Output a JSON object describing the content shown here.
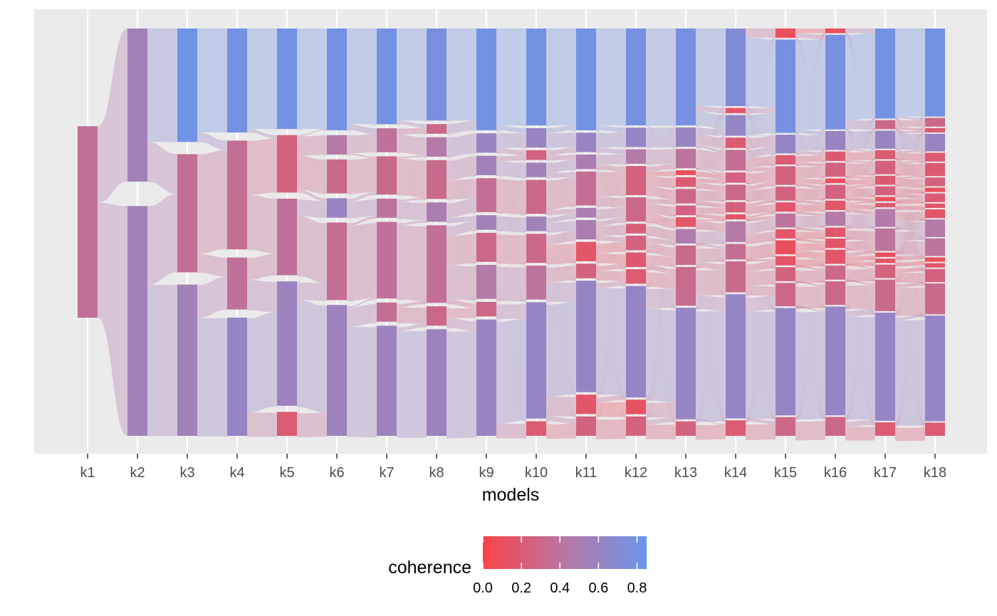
{
  "chart_data": {
    "type": "sankey",
    "xlabel": "models",
    "categories": [
      "k1",
      "k2",
      "k3",
      "k4",
      "k5",
      "k6",
      "k7",
      "k8",
      "k9",
      "k10",
      "k11",
      "k12",
      "k13",
      "k14",
      "k15",
      "k16",
      "k17",
      "k18"
    ],
    "legend": {
      "title": "coherence",
      "position": "bottom",
      "range": [
        0,
        0.85
      ],
      "ticks": [
        0.0,
        0.2,
        0.4,
        0.6,
        0.8
      ],
      "tick_labels": [
        "0.0",
        "0.2",
        "0.4",
        "0.6",
        "0.8"
      ],
      "color_low": "#fa4349",
      "color_mid": "#b47aa8",
      "color_high": "#6a95ec"
    },
    "panel_background": "#ebebeb",
    "grid": true,
    "nodes": [
      [
        [
          1.0,
          0.37
        ]
      ],
      [
        [
          0.4,
          0.55
        ],
        [
          0.6,
          0.55
        ]
      ],
      [
        [
          0.24,
          0.82
        ],
        [
          0.25,
          0.36
        ],
        [
          0.32,
          0.55
        ]
      ],
      [
        [
          0.22,
          0.8
        ],
        [
          0.23,
          0.35
        ],
        [
          0.11,
          0.38
        ],
        [
          0.25,
          0.62
        ]
      ],
      [
        [
          0.21,
          0.8
        ],
        [
          0.12,
          0.25
        ],
        [
          0.16,
          0.38
        ],
        [
          0.26,
          0.58
        ],
        [
          0.05,
          0.2
        ]
      ],
      [
        [
          0.21,
          0.8
        ],
        [
          0.04,
          0.45
        ],
        [
          0.07,
          0.32
        ],
        [
          0.04,
          0.6
        ],
        [
          0.16,
          0.35
        ],
        [
          0.27,
          0.58
        ]
      ],
      [
        [
          0.2,
          0.8
        ],
        [
          0.05,
          0.38
        ],
        [
          0.08,
          0.32
        ],
        [
          0.04,
          0.4
        ],
        [
          0.16,
          0.38
        ],
        [
          0.04,
          0.35
        ],
        [
          0.23,
          0.58
        ]
      ],
      [
        [
          0.19,
          0.78
        ],
        [
          0.02,
          0.3
        ],
        [
          0.04,
          0.45
        ],
        [
          0.08,
          0.32
        ],
        [
          0.04,
          0.5
        ],
        [
          0.16,
          0.36
        ],
        [
          0.04,
          0.3
        ],
        [
          0.22,
          0.58
        ]
      ],
      [
        [
          0.21,
          0.8
        ],
        [
          0.04,
          0.6
        ],
        [
          0.04,
          0.55
        ],
        [
          0.07,
          0.35
        ],
        [
          0.03,
          0.55
        ],
        [
          0.06,
          0.3
        ],
        [
          0.07,
          0.45
        ],
        [
          0.03,
          0.3
        ],
        [
          0.24,
          0.6
        ]
      ],
      [
        [
          0.2,
          0.8
        ],
        [
          0.04,
          0.6
        ],
        [
          0.02,
          0.25
        ],
        [
          0.03,
          0.55
        ],
        [
          0.07,
          0.3
        ],
        [
          0.03,
          0.55
        ],
        [
          0.06,
          0.3
        ],
        [
          0.07,
          0.4
        ],
        [
          0.24,
          0.62
        ],
        [
          0.03,
          0.2
        ]
      ],
      [
        [
          0.21,
          0.8
        ],
        [
          0.04,
          0.6
        ],
        [
          0.03,
          0.5
        ],
        [
          0.07,
          0.35
        ],
        [
          0.02,
          0.5
        ],
        [
          0.04,
          0.5
        ],
        [
          0.04,
          0.15
        ],
        [
          0.03,
          0.25
        ],
        [
          0.23,
          0.62
        ],
        [
          0.04,
          0.15
        ],
        [
          0.04,
          0.25
        ]
      ],
      [
        [
          0.2,
          0.78
        ],
        [
          0.04,
          0.62
        ],
        [
          0.03,
          0.45
        ],
        [
          0.06,
          0.25
        ],
        [
          0.05,
          0.3
        ],
        [
          0.02,
          0.22
        ],
        [
          0.03,
          0.25
        ],
        [
          0.03,
          0.18
        ],
        [
          0.03,
          0.2
        ],
        [
          0.23,
          0.62
        ],
        [
          0.03,
          0.12
        ],
        [
          0.04,
          0.25
        ]
      ],
      [
        [
          0.2,
          0.78
        ],
        [
          0.04,
          0.6
        ],
        [
          0.04,
          0.4
        ],
        [
          0.01,
          0.1
        ],
        [
          0.02,
          0.2
        ],
        [
          0.03,
          0.3
        ],
        [
          0.02,
          0.25
        ],
        [
          0.02,
          0.15
        ],
        [
          0.03,
          0.48
        ],
        [
          0.04,
          0.32
        ],
        [
          0.08,
          0.33
        ],
        [
          0.23,
          0.62
        ],
        [
          0.03,
          0.25
        ]
      ],
      [
        [
          0.15,
          0.72
        ],
        [
          0.01,
          0.15
        ],
        [
          0.04,
          0.62
        ],
        [
          0.02,
          0.2
        ],
        [
          0.04,
          0.35
        ],
        [
          0.02,
          0.25
        ],
        [
          0.03,
          0.3
        ],
        [
          0.02,
          0.25
        ],
        [
          0.01,
          0.15
        ],
        [
          0.04,
          0.45
        ],
        [
          0.03,
          0.35
        ],
        [
          0.06,
          0.32
        ],
        [
          0.24,
          0.62
        ],
        [
          0.03,
          0.2
        ]
      ],
      [
        [
          0.02,
          0.1
        ],
        [
          0.2,
          0.78
        ],
        [
          0.04,
          0.62
        ],
        [
          0.02,
          0.2
        ],
        [
          0.04,
          0.25
        ],
        [
          0.03,
          0.25
        ],
        [
          0.02,
          0.15
        ],
        [
          0.03,
          0.4
        ],
        [
          0.02,
          0.15
        ],
        [
          0.03,
          0.1
        ],
        [
          0.02,
          0.15
        ],
        [
          0.03,
          0.25
        ],
        [
          0.05,
          0.3
        ],
        [
          0.23,
          0.62
        ],
        [
          0.04,
          0.3
        ]
      ],
      [
        [
          0.01,
          0.1
        ],
        [
          0.2,
          0.78
        ],
        [
          0.04,
          0.6
        ],
        [
          0.02,
          0.2
        ],
        [
          0.03,
          0.25
        ],
        [
          0.01,
          0.1
        ],
        [
          0.03,
          0.25
        ],
        [
          0.02,
          0.15
        ],
        [
          0.03,
          0.45
        ],
        [
          0.02,
          0.15
        ],
        [
          0.02,
          0.15
        ],
        [
          0.03,
          0.15
        ],
        [
          0.03,
          0.3
        ],
        [
          0.05,
          0.3
        ],
        [
          0.23,
          0.62
        ],
        [
          0.04,
          0.3
        ]
      ],
      [
        [
          0.2,
          0.8
        ],
        [
          0.02,
          0.3
        ],
        [
          0.04,
          0.6
        ],
        [
          0.02,
          0.2
        ],
        [
          0.03,
          0.25
        ],
        [
          0.02,
          0.2
        ],
        [
          0.02,
          0.25
        ],
        [
          0.01,
          0.1
        ],
        [
          0.01,
          0.2
        ],
        [
          0.04,
          0.45
        ],
        [
          0.05,
          0.4
        ],
        [
          0.01,
          0.1
        ],
        [
          0.01,
          0.15
        ],
        [
          0.03,
          0.25
        ],
        [
          0.07,
          0.32
        ],
        [
          0.24,
          0.62
        ],
        [
          0.03,
          0.2
        ]
      ],
      [
        [
          0.2,
          0.8
        ],
        [
          0.02,
          0.3
        ],
        [
          0.01,
          0.2
        ],
        [
          0.04,
          0.6
        ],
        [
          0.02,
          0.2
        ],
        [
          0.03,
          0.2
        ],
        [
          0.02,
          0.25
        ],
        [
          0.01,
          0.1
        ],
        [
          0.02,
          0.2
        ],
        [
          0.01,
          0.15
        ],
        [
          0.02,
          0.15
        ],
        [
          0.04,
          0.45
        ],
        [
          0.04,
          0.4
        ],
        [
          0.01,
          0.1
        ],
        [
          0.01,
          0.15
        ],
        [
          0.03,
          0.25
        ],
        [
          0.07,
          0.32
        ],
        [
          0.24,
          0.62
        ],
        [
          0.03,
          0.2
        ]
      ]
    ]
  }
}
